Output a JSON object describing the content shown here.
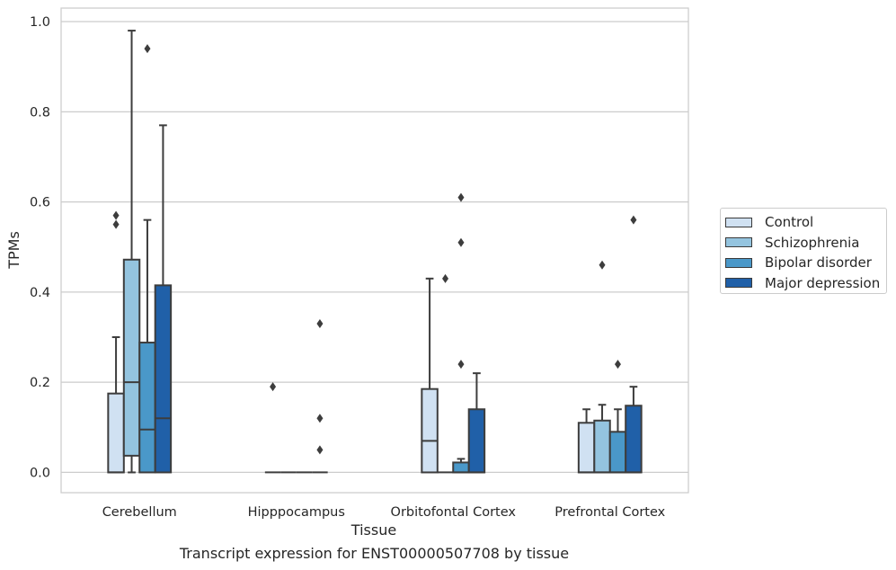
{
  "chart_data": {
    "type": "box",
    "xlabel": "Tissue",
    "ylabel": "TPMs",
    "ylim": [
      -0.045,
      1.03
    ],
    "yticks": [
      0.0,
      0.2,
      0.4,
      0.6,
      0.8,
      1.0
    ],
    "ytick_labels": [
      "0.0",
      "0.2",
      "0.4",
      "0.6",
      "0.8",
      "1.0"
    ],
    "categories": [
      "Cerebellum",
      "Hipppocampus",
      "Orbitofontal Cortex",
      "Prefrontal Cortex"
    ],
    "grid": true,
    "legend_position": "right",
    "series": [
      {
        "name": "Control",
        "color": "#d0e1f2",
        "boxes": [
          {
            "q1": 0.0,
            "median": 0.0,
            "q3": 0.175,
            "whisker_low": 0.0,
            "whisker_high": 0.3,
            "outliers": [
              0.55,
              0.57
            ]
          },
          {
            "q1": 0.0,
            "median": 0.0,
            "q3": 0.0,
            "whisker_low": 0.0,
            "whisker_high": 0.0,
            "outliers": [
              0.19
            ]
          },
          {
            "q1": 0.0,
            "median": 0.07,
            "q3": 0.185,
            "whisker_low": 0.0,
            "whisker_high": 0.43,
            "outliers": []
          },
          {
            "q1": 0.0,
            "median": 0.0,
            "q3": 0.11,
            "whisker_low": 0.0,
            "whisker_high": 0.14,
            "outliers": []
          }
        ]
      },
      {
        "name": "Schizophrenia",
        "color": "#94c4df",
        "boxes": [
          {
            "q1": 0.037,
            "median": 0.2,
            "q3": 0.472,
            "whisker_low": 0.0,
            "whisker_high": 0.98,
            "outliers": []
          },
          {
            "q1": 0.0,
            "median": 0.0,
            "q3": 0.0,
            "whisker_low": 0.0,
            "whisker_high": 0.0,
            "outliers": []
          },
          {
            "q1": 0.0,
            "median": 0.0,
            "q3": 0.0,
            "whisker_low": 0.0,
            "whisker_high": 0.0,
            "outliers": [
              0.43
            ]
          },
          {
            "q1": 0.0,
            "median": 0.0,
            "q3": 0.115,
            "whisker_low": 0.0,
            "whisker_high": 0.15,
            "outliers": [
              0.46
            ]
          }
        ]
      },
      {
        "name": "Bipolar disorder",
        "color": "#4a98c9",
        "boxes": [
          {
            "q1": 0.0,
            "median": 0.095,
            "q3": 0.288,
            "whisker_low": 0.0,
            "whisker_high": 0.56,
            "outliers": [
              0.94
            ]
          },
          {
            "q1": 0.0,
            "median": 0.0,
            "q3": 0.0,
            "whisker_low": 0.0,
            "whisker_high": 0.0,
            "outliers": []
          },
          {
            "q1": 0.0,
            "median": 0.0,
            "q3": 0.022,
            "whisker_low": 0.0,
            "whisker_high": 0.03,
            "outliers": [
              0.24,
              0.51,
              0.61
            ]
          },
          {
            "q1": 0.0,
            "median": 0.0,
            "q3": 0.09,
            "whisker_low": 0.0,
            "whisker_high": 0.14,
            "outliers": [
              0.24
            ]
          }
        ]
      },
      {
        "name": "Major depression",
        "color": "#2060a8",
        "boxes": [
          {
            "q1": 0.0,
            "median": 0.12,
            "q3": 0.415,
            "whisker_low": 0.0,
            "whisker_high": 0.77,
            "outliers": []
          },
          {
            "q1": 0.0,
            "median": 0.0,
            "q3": 0.0,
            "whisker_low": 0.0,
            "whisker_high": 0.0,
            "outliers": [
              0.05,
              0.12,
              0.33
            ]
          },
          {
            "q1": 0.0,
            "median": 0.0,
            "q3": 0.14,
            "whisker_low": 0.0,
            "whisker_high": 0.22,
            "outliers": []
          },
          {
            "q1": 0.0,
            "median": 0.0,
            "q3": 0.148,
            "whisker_low": 0.0,
            "whisker_high": 0.19,
            "outliers": [
              0.56
            ]
          }
        ]
      }
    ]
  },
  "caption": "Transcript expression for ENST00000507708 by tissue"
}
